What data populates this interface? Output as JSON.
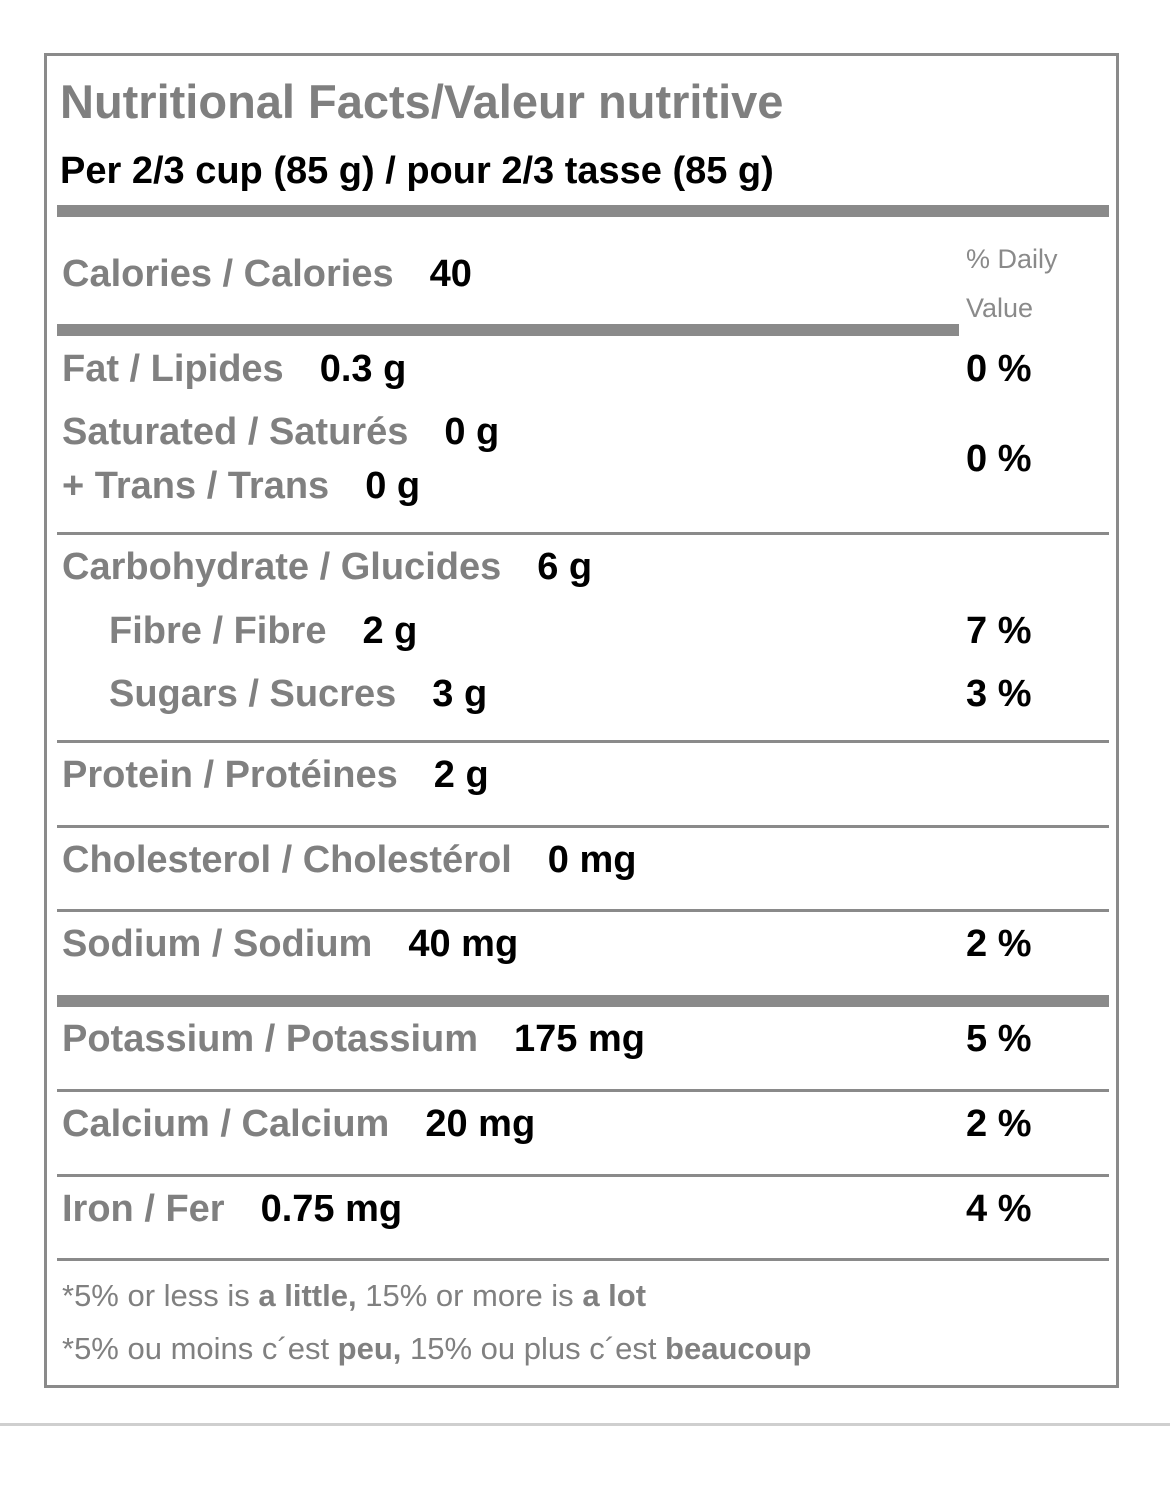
{
  "label": {
    "title": "Nutritional Facts/Valeur nutritive",
    "serving": "Per 2/3 cup (85 g) / pour 2/3 tasse (85 g)",
    "calories_label": "Calories / Calories",
    "calories_value": "40",
    "dv_header_line1": "% Daily",
    "dv_header_line2": "Value",
    "rows": [
      {
        "label": "Fat / Lipides",
        "amount": "0.3 g",
        "dv": "0 %"
      },
      {
        "label": "Saturated / Saturés",
        "amount": "0 g",
        "dv": ""
      },
      {
        "label": "+ Trans / Trans",
        "amount": "0 g",
        "dv": "0 %"
      },
      {
        "label": "Carbohydrate / Glucides",
        "amount": "6 g",
        "dv": ""
      },
      {
        "label": "Fibre / Fibre",
        "amount": "2 g",
        "dv": "7 %"
      },
      {
        "label": "Sugars / Sucres",
        "amount": "3 g",
        "dv": "3 %"
      },
      {
        "label": "Protein / Protéines",
        "amount": "2 g",
        "dv": ""
      },
      {
        "label": "Cholesterol / Cholestérol",
        "amount": "0 mg",
        "dv": ""
      },
      {
        "label": "Sodium / Sodium",
        "amount": "40 mg",
        "dv": "2 %"
      },
      {
        "label": "Potassium / Potassium",
        "amount": "175 mg",
        "dv": "5 %"
      },
      {
        "label": "Calcium / Calcium",
        "amount": "20 mg",
        "dv": "2 %"
      },
      {
        "label": "Iron / Fer",
        "amount": "0.75 mg",
        "dv": "4 %"
      }
    ],
    "footnote_en": {
      "part1": "*5% or less is ",
      "bold1": "a little,",
      "part2": " 15% or more is ",
      "bold2": "a lot"
    },
    "footnote_fr": {
      "part1": "*5% ou moins c´est ",
      "bold1": "peu,",
      "part2": " 15% ou plus c´est ",
      "bold2": "beaucoup"
    }
  }
}
